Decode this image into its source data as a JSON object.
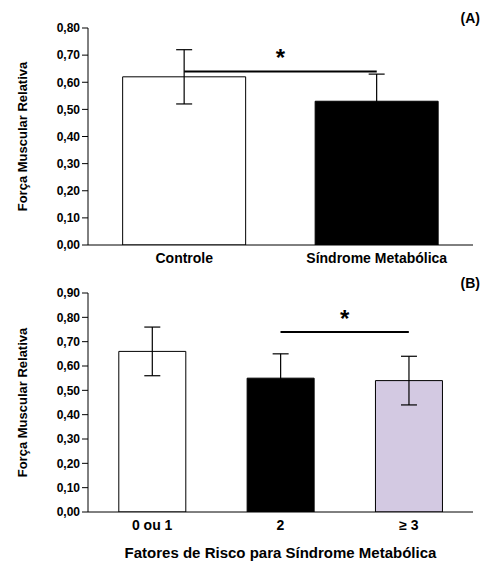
{
  "chart_data": [
    {
      "type": "bar",
      "title": "(A)",
      "y_label": "Força Muscular Relativa",
      "categories": [
        "Controle",
        "Síndrome Metabólica"
      ],
      "values": [
        0.62,
        0.53
      ],
      "errors": [
        0.1,
        0.1
      ],
      "colors": [
        "#ffffff",
        "#000000"
      ],
      "ylim": [
        0,
        0.8
      ],
      "yticks": [
        {
          "value": 0,
          "label": "0,00"
        },
        {
          "value": 0.1,
          "label": "0,10"
        },
        {
          "value": 0.2,
          "label": "0,20"
        },
        {
          "value": 0.3,
          "label": "0,30"
        },
        {
          "value": 0.4,
          "label": "0,40"
        },
        {
          "value": 0.5,
          "label": "0,50"
        },
        {
          "value": 0.6,
          "label": "0,60"
        },
        {
          "value": 0.7,
          "label": "0,70"
        },
        {
          "value": 0.8,
          "label": "0,80"
        }
      ],
      "annotations": [
        {
          "text": "*",
          "from": "Controle",
          "to": "Síndrome Metabólica",
          "y": 0.64
        }
      ]
    },
    {
      "type": "bar",
      "title": "(B)",
      "y_label": "Força Muscular Relativa",
      "x_label": "Fatores de Risco para Síndrome Metabólica",
      "categories": [
        "0 ou 1",
        "2",
        "≥ 3"
      ],
      "values": [
        0.66,
        0.55,
        0.54
      ],
      "errors": [
        0.1,
        0.1,
        0.1
      ],
      "colors": [
        "#ffffff",
        "#000000",
        "#d3c9e2"
      ],
      "ylim": [
        0,
        0.9
      ],
      "yticks": [
        {
          "value": 0,
          "label": "0,00"
        },
        {
          "value": 0.1,
          "label": "0,10"
        },
        {
          "value": 0.2,
          "label": "0,20"
        },
        {
          "value": 0.3,
          "label": "0,30"
        },
        {
          "value": 0.4,
          "label": "0,40"
        },
        {
          "value": 0.5,
          "label": "0,50"
        },
        {
          "value": 0.6,
          "label": "0,60"
        },
        {
          "value": 0.7,
          "label": "0,70"
        },
        {
          "value": 0.8,
          "label": "0,80"
        },
        {
          "value": 0.9,
          "label": "0,90"
        }
      ],
      "annotations": [
        {
          "text": "*",
          "from": "2",
          "to": "≥ 3",
          "y": 0.74
        }
      ]
    }
  ]
}
